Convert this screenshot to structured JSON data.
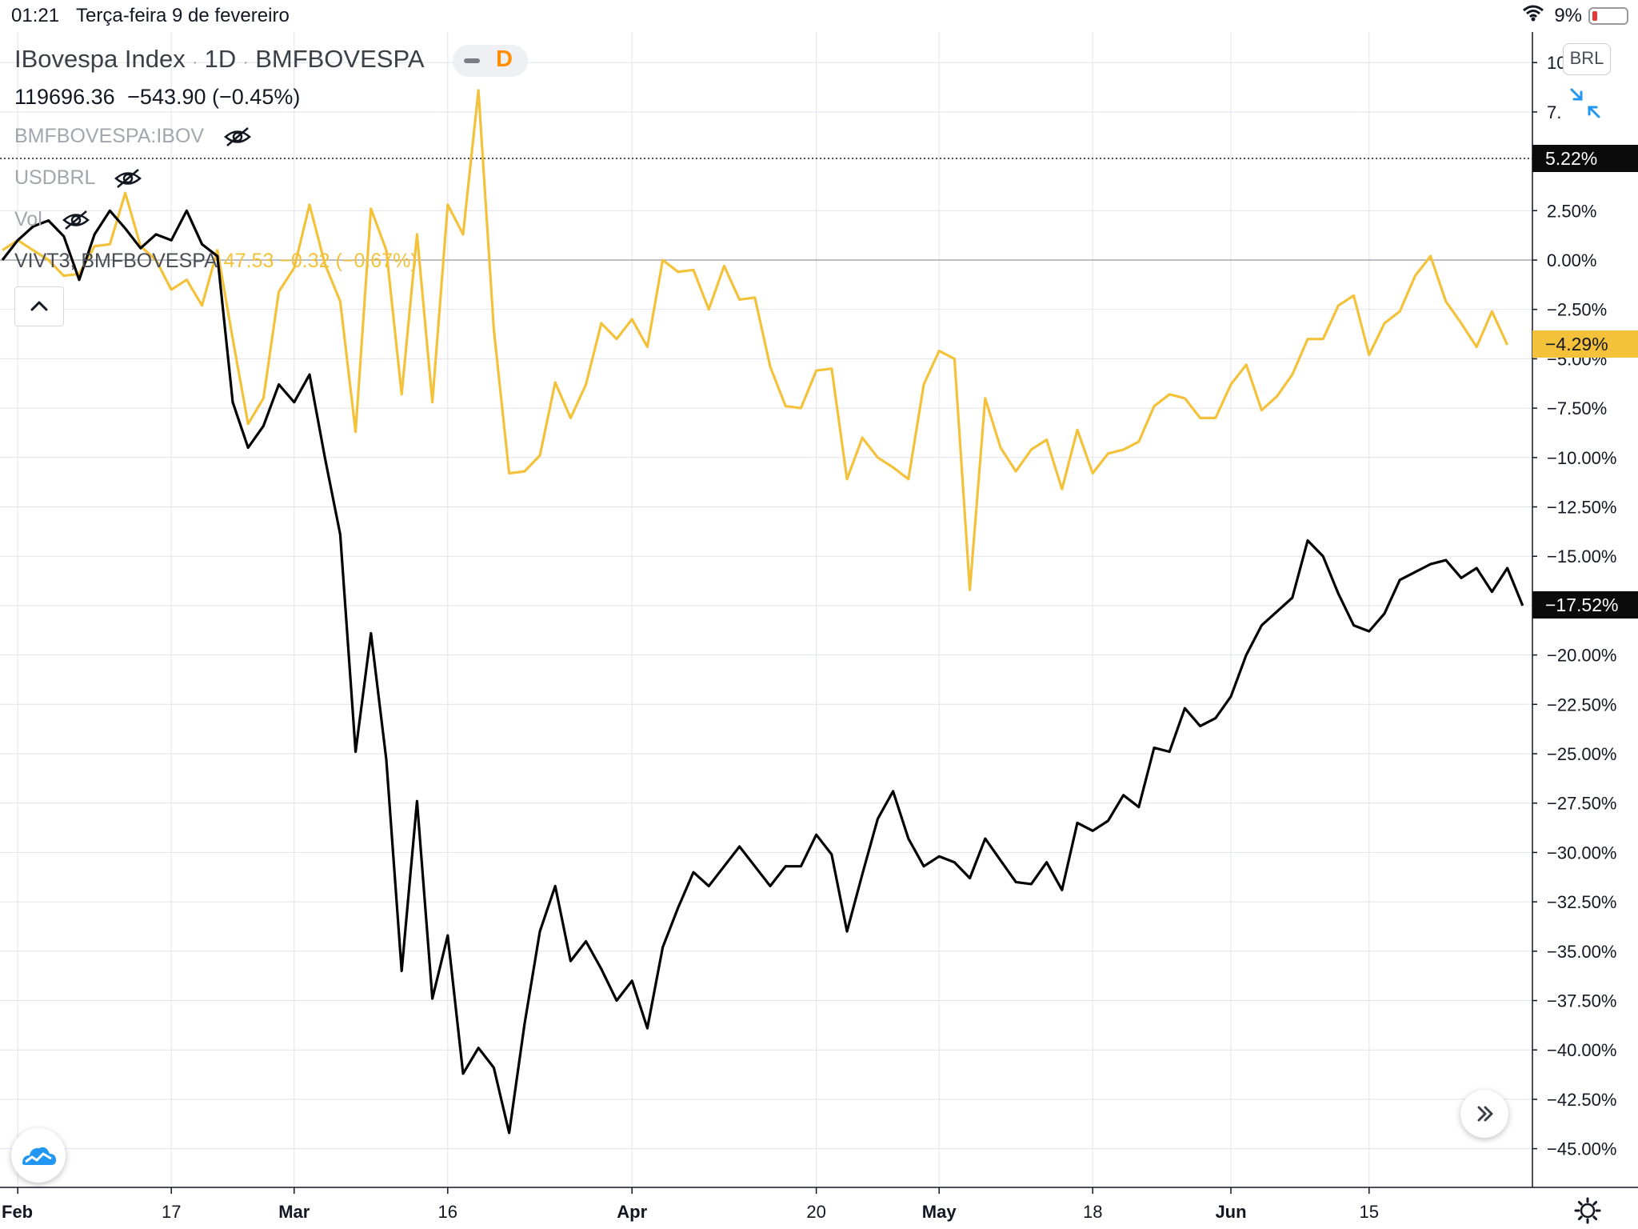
{
  "status_bar": {
    "time": "01:21",
    "date": "Terça-feira 9 de fevereiro",
    "battery": "9%"
  },
  "legend": {
    "symbol": "IBovespa Index",
    "interval": "1D",
    "exchange": "BMFBOVESPA",
    "separator": "·",
    "price": "119696.36",
    "change": "−543.90",
    "change_pct": "(−0.45%)",
    "mode_badge": "D",
    "studies": [
      {
        "label": "BMFBOVESPA:IBOV"
      },
      {
        "label": "USDBRL"
      },
      {
        "label": "Vol"
      }
    ],
    "compare": {
      "label": "VIVT3, BMFBOVESPA",
      "price": "47.53",
      "change": "−0.32",
      "change_pct": "(−0.67%)"
    }
  },
  "toolbar": {
    "currency": "BRL"
  },
  "price_tags": {
    "dotted": "5.22%",
    "yellow": "−4.29%",
    "black": "−17.52%"
  },
  "colors": {
    "ibov_line": "#000000",
    "vivt_line": "#f4c23a",
    "accent": "#2196f3"
  },
  "chart_data": {
    "type": "line",
    "y_unit": "%",
    "ylim": [
      -47,
      12
    ],
    "y_ticks": [
      "10",
      "7.",
      "2.50%",
      "0.00%",
      "−2.50%",
      "−5.00%",
      "−7.50%",
      "−10.00%",
      "−12.50%",
      "−15.00%",
      "−17.50%",
      "−20.00%",
      "−22.50%",
      "−25.00%",
      "−27.50%",
      "−30.00%",
      "−32.50%",
      "−35.00%",
      "−37.50%",
      "−40.00%",
      "−42.50%",
      "−45.00%"
    ],
    "y_tick_values": [
      10,
      7.5,
      2.5,
      0,
      -2.5,
      -5,
      -7.5,
      -10,
      -12.5,
      -15,
      -17.5,
      -20,
      -22.5,
      -25,
      -27.5,
      -30,
      -32.5,
      -35,
      -37.5,
      -40,
      -42.5,
      -45
    ],
    "x_ticks": [
      "Feb",
      "17",
      "Mar",
      "16",
      "Apr",
      "20",
      "May",
      "18",
      "Jun",
      "15"
    ],
    "x_tick_bars": [
      1,
      11,
      19,
      29,
      41,
      53,
      61,
      71,
      80,
      89
    ],
    "grid": true,
    "series": [
      {
        "name": "IBovespa Index",
        "color": "#000000",
        "values": [
          0.0,
          1.0,
          1.7,
          2.0,
          1.2,
          -1.0,
          1.3,
          2.5,
          1.6,
          0.6,
          1.3,
          1.0,
          2.5,
          0.8,
          0.2,
          -7.2,
          -9.5,
          -8.4,
          -6.3,
          -7.2,
          -5.8,
          -10.0,
          -13.9,
          -24.9,
          -18.9,
          -25.3,
          -36.0,
          -27.4,
          -37.4,
          -34.2,
          -41.2,
          -39.9,
          -40.9,
          -44.2,
          -38.7,
          -34.0,
          -31.7,
          -35.5,
          -34.5,
          -35.9,
          -37.5,
          -36.5,
          -38.9,
          -34.8,
          -32.8,
          -31.0,
          -31.7,
          -30.7,
          -29.7,
          -30.7,
          -31.7,
          -30.7,
          -30.7,
          -29.1,
          -30.1,
          -34.0,
          -31.1,
          -28.3,
          -26.9,
          -29.3,
          -30.7,
          -30.2,
          -30.5,
          -31.3,
          -29.3,
          -30.4,
          -31.5,
          -31.6,
          -30.5,
          -31.9,
          -28.5,
          -28.9,
          -28.4,
          -27.1,
          -27.7,
          -24.7,
          -24.9,
          -22.7,
          -23.6,
          -23.2,
          -22.1,
          -20.0,
          -18.5,
          -17.8,
          -17.1,
          -14.2,
          -15.0,
          -16.9,
          -18.5,
          -18.8,
          -17.9,
          -16.2,
          -15.8,
          -15.4,
          -15.2,
          -16.1,
          -15.6,
          -16.8,
          -15.6,
          -17.5
        ]
      },
      {
        "name": "VIVT3, BMFBOVESPA",
        "color": "#f4c23a",
        "values": [
          0.5,
          1.0,
          0.5,
          0.0,
          -0.8,
          -0.7,
          0.7,
          0.8,
          3.4,
          0.7,
          0.0,
          -1.5,
          -1.0,
          -2.3,
          0.5,
          -4.0,
          -8.3,
          -7.0,
          -1.6,
          -0.4,
          2.8,
          -0.2,
          -2.1,
          -8.7,
          2.6,
          0.5,
          -6.8,
          1.3,
          -7.2,
          2.8,
          1.3,
          8.6,
          -3.5,
          -10.8,
          -10.7,
          -9.9,
          -6.2,
          -8.0,
          -6.3,
          -3.2,
          -4.0,
          -3.0,
          -4.4,
          0.0,
          -0.6,
          -0.5,
          -2.5,
          -0.3,
          -2.0,
          -1.9,
          -5.4,
          -7.4,
          -7.5,
          -5.6,
          -5.5,
          -11.1,
          -9.0,
          -10.0,
          -10.5,
          -11.1,
          -6.3,
          -4.6,
          -5.0,
          -16.7,
          -7.0,
          -9.5,
          -10.7,
          -9.6,
          -9.1,
          -11.6,
          -8.6,
          -10.8,
          -9.8,
          -9.6,
          -9.2,
          -7.4,
          -6.8,
          -7.0,
          -8.0,
          -8.0,
          -6.3,
          -5.3,
          -7.6,
          -6.9,
          -5.8,
          -4.0,
          -4.0,
          -2.3,
          -1.8,
          -4.8,
          -3.2,
          -2.6,
          -0.8,
          0.2,
          -2.1,
          -3.2,
          -4.4,
          -2.6,
          -4.3
        ]
      }
    ]
  }
}
